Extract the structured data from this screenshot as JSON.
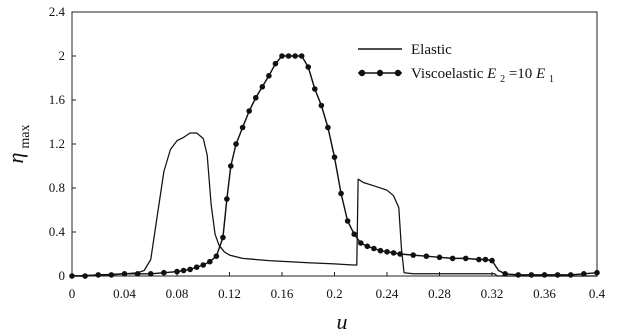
{
  "chart_data": {
    "type": "line",
    "title": "",
    "xlabel": "u",
    "ylabel": {
      "main": "η",
      "sub": "max"
    },
    "xlim": [
      0,
      0.4
    ],
    "ylim": [
      0,
      2.4
    ],
    "grid": false,
    "legend_position": "top-right",
    "x_ticks": [
      "0",
      "0.04",
      "0.08",
      "0.12",
      "0.16",
      "0.2",
      "0.24",
      "0.28",
      "0.32",
      "0.36",
      "0.4"
    ],
    "y_ticks": [
      "0",
      "0.4",
      "0.8",
      "1.2",
      "1.6",
      "2",
      "2.4"
    ],
    "series": [
      {
        "name": "Elastic",
        "style": "line",
        "color": "#111111",
        "points": [
          [
            0,
            0
          ],
          [
            0.02,
            0.01
          ],
          [
            0.04,
            0.02
          ],
          [
            0.05,
            0.03
          ],
          [
            0.055,
            0.05
          ],
          [
            0.06,
            0.15
          ],
          [
            0.065,
            0.55
          ],
          [
            0.07,
            0.95
          ],
          [
            0.075,
            1.15
          ],
          [
            0.08,
            1.23
          ],
          [
            0.085,
            1.26
          ],
          [
            0.09,
            1.3
          ],
          [
            0.095,
            1.3
          ],
          [
            0.1,
            1.25
          ],
          [
            0.103,
            1.1
          ],
          [
            0.106,
            0.65
          ],
          [
            0.109,
            0.38
          ],
          [
            0.112,
            0.28
          ],
          [
            0.116,
            0.22
          ],
          [
            0.12,
            0.19
          ],
          [
            0.13,
            0.16
          ],
          [
            0.15,
            0.14
          ],
          [
            0.18,
            0.12
          ],
          [
            0.2,
            0.11
          ],
          [
            0.214,
            0.1
          ],
          [
            0.217,
            0.1
          ],
          [
            0.218,
            0.88
          ],
          [
            0.222,
            0.85
          ],
          [
            0.23,
            0.82
          ],
          [
            0.24,
            0.78
          ],
          [
            0.245,
            0.73
          ],
          [
            0.249,
            0.62
          ],
          [
            0.251,
            0.25
          ],
          [
            0.253,
            0.03
          ],
          [
            0.26,
            0.02
          ],
          [
            0.3,
            0.02
          ],
          [
            0.322,
            0.02
          ],
          [
            0.324,
            0.0
          ],
          [
            0.4,
            0.0
          ]
        ]
      },
      {
        "name": "Viscoelastic E2=10E1",
        "name_rich": {
          "prefix": "Viscoelastic ",
          "e": "E",
          "sub1": "2",
          "mid": "=10",
          "sub2": "1"
        },
        "style": "line-markers",
        "color": "#111111",
        "points": [
          [
            0,
            0
          ],
          [
            0.01,
            0.0
          ],
          [
            0.02,
            0.01
          ],
          [
            0.03,
            0.01
          ],
          [
            0.04,
            0.02
          ],
          [
            0.05,
            0.02
          ],
          [
            0.06,
            0.02
          ],
          [
            0.07,
            0.03
          ],
          [
            0.08,
            0.04
          ],
          [
            0.085,
            0.05
          ],
          [
            0.09,
            0.06
          ],
          [
            0.095,
            0.08
          ],
          [
            0.1,
            0.1
          ],
          [
            0.105,
            0.13
          ],
          [
            0.11,
            0.18
          ],
          [
            0.115,
            0.35
          ],
          [
            0.118,
            0.7
          ],
          [
            0.121,
            1.0
          ],
          [
            0.125,
            1.2
          ],
          [
            0.13,
            1.35
          ],
          [
            0.135,
            1.5
          ],
          [
            0.14,
            1.62
          ],
          [
            0.145,
            1.72
          ],
          [
            0.15,
            1.82
          ],
          [
            0.155,
            1.93
          ],
          [
            0.16,
            2.0
          ],
          [
            0.165,
            2.0
          ],
          [
            0.17,
            2.0
          ],
          [
            0.175,
            2.0
          ],
          [
            0.18,
            1.9
          ],
          [
            0.185,
            1.7
          ],
          [
            0.19,
            1.55
          ],
          [
            0.195,
            1.35
          ],
          [
            0.2,
            1.08
          ],
          [
            0.205,
            0.75
          ],
          [
            0.21,
            0.5
          ],
          [
            0.215,
            0.38
          ],
          [
            0.22,
            0.3
          ],
          [
            0.225,
            0.27
          ],
          [
            0.23,
            0.25
          ],
          [
            0.235,
            0.23
          ],
          [
            0.24,
            0.22
          ],
          [
            0.245,
            0.21
          ],
          [
            0.25,
            0.2
          ],
          [
            0.26,
            0.19
          ],
          [
            0.27,
            0.18
          ],
          [
            0.28,
            0.17
          ],
          [
            0.29,
            0.16
          ],
          [
            0.3,
            0.16
          ],
          [
            0.31,
            0.15
          ],
          [
            0.315,
            0.15
          ],
          [
            0.32,
            0.14
          ],
          [
            0.325,
            0.05
          ],
          [
            0.33,
            0.02
          ],
          [
            0.34,
            0.01
          ],
          [
            0.35,
            0.01
          ],
          [
            0.36,
            0.01
          ],
          [
            0.37,
            0.01
          ],
          [
            0.38,
            0.01
          ],
          [
            0.39,
            0.02
          ],
          [
            0.4,
            0.03
          ]
        ],
        "marker_x": [
          0,
          0.01,
          0.02,
          0.03,
          0.04,
          0.05,
          0.06,
          0.07,
          0.08,
          0.085,
          0.09,
          0.095,
          0.1,
          0.105,
          0.11,
          0.115,
          0.118,
          0.121,
          0.125,
          0.13,
          0.135,
          0.14,
          0.145,
          0.15,
          0.155,
          0.16,
          0.165,
          0.17,
          0.175,
          0.18,
          0.185,
          0.19,
          0.195,
          0.2,
          0.205,
          0.21,
          0.215,
          0.22,
          0.225,
          0.23,
          0.235,
          0.24,
          0.245,
          0.25,
          0.26,
          0.27,
          0.28,
          0.29,
          0.3,
          0.31,
          0.315,
          0.32,
          0.33,
          0.34,
          0.35,
          0.36,
          0.37,
          0.38,
          0.39,
          0.4
        ]
      }
    ]
  }
}
